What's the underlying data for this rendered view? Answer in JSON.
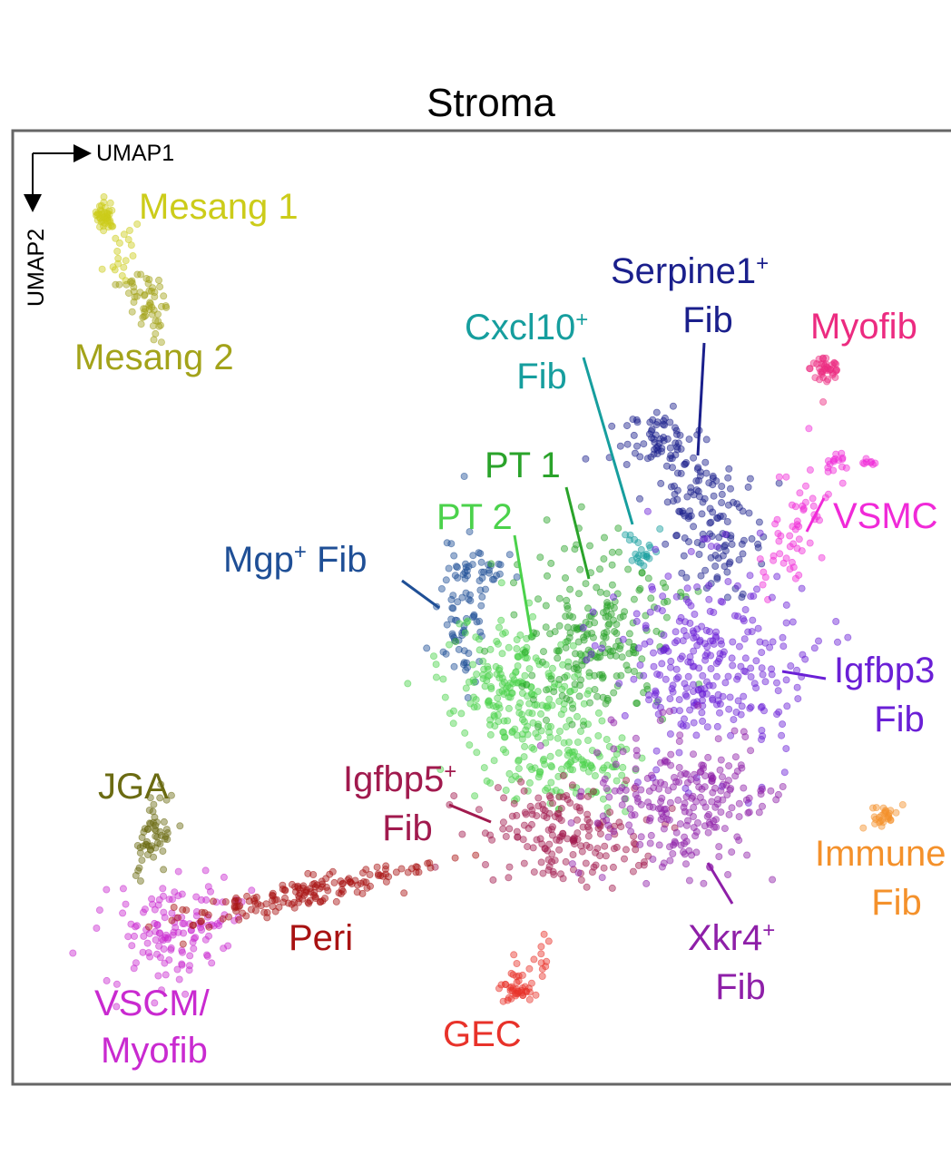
{
  "chart_data": {
    "type": "scatter",
    "title": "Stroma",
    "xlabel": "UMAP1",
    "ylabel": "UMAP2",
    "axis_ticks": false,
    "grid": false,
    "legend": "none (clusters labelled directly on the plot)",
    "series": [
      {
        "name": "Mesang 1",
        "color": "#cccc1a"
      },
      {
        "name": "Mesang 2",
        "color": "#a3a31a"
      },
      {
        "name": "Serpine1+ Fib",
        "color": "#1a1f8c"
      },
      {
        "name": "Cxcl10+ Fib",
        "color": "#169e9e"
      },
      {
        "name": "Myofib",
        "color": "#ec2b80"
      },
      {
        "name": "PT 1",
        "color": "#2aa32a"
      },
      {
        "name": "PT 2",
        "color": "#4bd24b"
      },
      {
        "name": "VSMC",
        "color": "#f02ad8"
      },
      {
        "name": "Mgp+ Fib",
        "color": "#1f4f96"
      },
      {
        "name": "Igfbp3 Fib",
        "color": "#6a1fd6"
      },
      {
        "name": "JGA",
        "color": "#6b6b12"
      },
      {
        "name": "Igfbp5+ Fib",
        "color": "#a11a4e"
      },
      {
        "name": "Immune Fib",
        "color": "#f4912b"
      },
      {
        "name": "Peri",
        "color": "#a81212"
      },
      {
        "name": "Xkr4+ Fib",
        "color": "#8e1fa8"
      },
      {
        "name": "VSCM/ Myofib",
        "color": "#c92ad0"
      },
      {
        "name": "GEC",
        "color": "#e8322a"
      }
    ]
  },
  "labels": {
    "mesang1": "Mesang 1",
    "mesang2": "Mesang 2",
    "serpine_a": "Serpine1",
    "serpine_sup": "+",
    "serpine_b": "Fib",
    "cxcl_a": "Cxcl10",
    "cxcl_sup": "+",
    "cxcl_b": "Fib",
    "myofib": "Myofib",
    "pt1": "PT 1",
    "pt2": "PT 2",
    "vsmc": "VSMC",
    "mgp_a": "Mgp",
    "mgp_sup": "+",
    "mgp_b": " Fib",
    "igfbp3_a": "Igfbp3",
    "igfbp3_b": "Fib",
    "jga": "JGA",
    "igfbp5_a": "Igfbp5",
    "igfbp5_sup": "+",
    "igfbp5_b": "Fib",
    "immune_a": "Immune",
    "immune_b": "Fib",
    "peri": "Peri",
    "xkr4_a": "Xkr4",
    "xkr4_sup": "+",
    "xkr4_b": "Fib",
    "vscm_a": "VSCM/",
    "vscm_b": "Myofib",
    "gec": "GEC"
  }
}
